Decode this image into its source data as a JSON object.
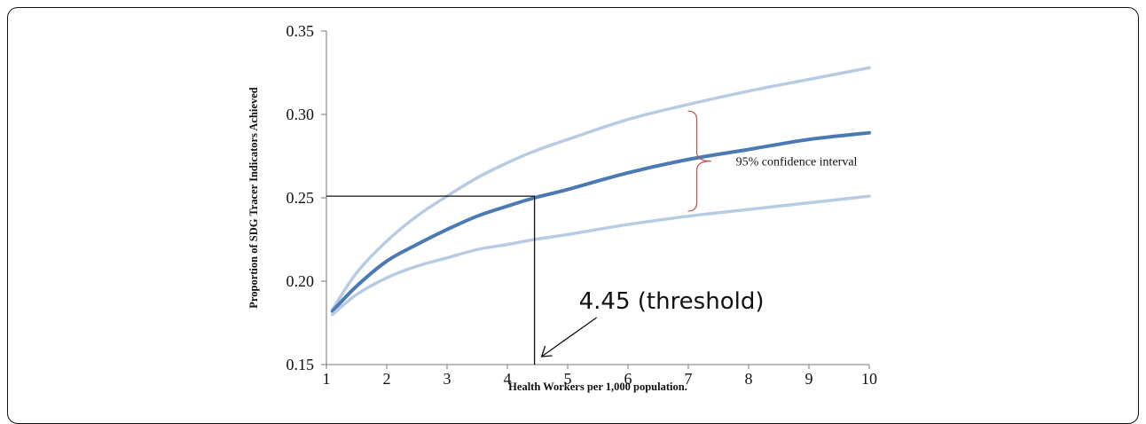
{
  "chart_data": {
    "type": "line",
    "title": "",
    "xlabel": "Health Workers per 1,000 population.",
    "ylabel": "Proportion of SDG Tracer Indicators Achieved",
    "xlim": [
      1,
      10
    ],
    "ylim": [
      0.15,
      0.35
    ],
    "x_ticks": [
      "1",
      "2",
      "3",
      "4",
      "5",
      "6",
      "7",
      "8",
      "9",
      "10"
    ],
    "y_ticks": [
      "0.15",
      "0.20",
      "0.25",
      "0.30",
      "0.35"
    ],
    "grid": false,
    "legend": "none",
    "x": [
      1.1,
      1.5,
      2,
      2.5,
      3,
      3.5,
      4,
      4.45,
      5,
      6,
      7,
      8,
      9,
      10
    ],
    "series": [
      {
        "role": "upper-ci",
        "color": "#b7cce3",
        "values": [
          0.183,
          0.205,
          0.224,
          0.239,
          0.251,
          0.262,
          0.271,
          0.278,
          0.285,
          0.297,
          0.306,
          0.314,
          0.321,
          0.328
        ]
      },
      {
        "role": "estimate",
        "color": "#4a7ab4",
        "values": [
          0.182,
          0.197,
          0.212,
          0.222,
          0.231,
          0.239,
          0.245,
          0.25,
          0.255,
          0.265,
          0.273,
          0.279,
          0.285,
          0.289
        ]
      },
      {
        "role": "lower-ci",
        "color": "#b7cce3",
        "values": [
          0.18,
          0.192,
          0.202,
          0.209,
          0.214,
          0.219,
          0.222,
          0.225,
          0.228,
          0.234,
          0.239,
          0.243,
          0.247,
          0.251
        ]
      }
    ],
    "annotations": {
      "ci_label": "95% confidence interval",
      "ci_brace_x": 7.2,
      "ci_range": [
        0.242,
        0.302
      ],
      "ci_color": "#c0504d",
      "threshold_label": "4.45 (threshold)",
      "threshold_x": 4.45,
      "threshold_y": 0.251
    }
  }
}
